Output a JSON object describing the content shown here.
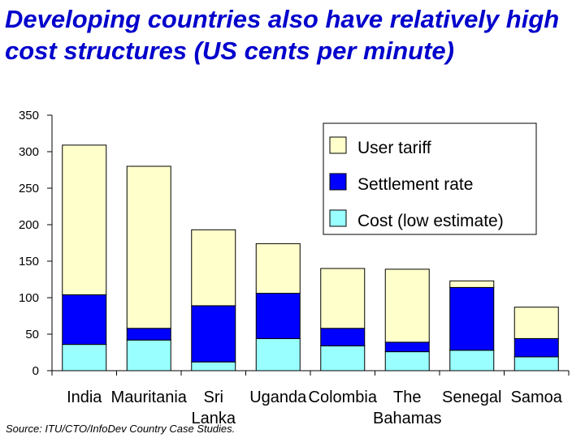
{
  "title": "Developing countries also have relatively high cost structures (US cents per minute)",
  "source": "Source: ITU/CTO/InfoDev Country Case Studies.",
  "colors": {
    "user_tariff": "#ffffcc",
    "settlement_rate": "#0000ff",
    "cost_low_estimate": "#99ffff"
  },
  "chart_data": {
    "type": "bar",
    "stacked": true,
    "ylim": [
      0,
      350
    ],
    "yticks": [
      0,
      50,
      100,
      150,
      200,
      250,
      300,
      350
    ],
    "categories": [
      {
        "line1": "India",
        "line2": ""
      },
      {
        "line1": "Mauritania",
        "line2": ""
      },
      {
        "line1": "Sri",
        "line2": "Lanka"
      },
      {
        "line1": "Uganda",
        "line2": ""
      },
      {
        "line1": "Colombia",
        "line2": ""
      },
      {
        "line1": "The",
        "line2": "Bahamas"
      },
      {
        "line1": "Senegal",
        "line2": ""
      },
      {
        "line1": "Samoa",
        "line2": ""
      }
    ],
    "series": [
      {
        "name": "Cost (low estimate)",
        "key": "cost_low_estimate",
        "values": [
          36,
          42,
          12,
          44,
          34,
          26,
          28,
          19
        ]
      },
      {
        "name": "Settlement rate",
        "key": "settlement_rate",
        "values": [
          68,
          16,
          77,
          62,
          24,
          13,
          86,
          25
        ]
      },
      {
        "name": "User tariff",
        "key": "user_tariff",
        "values": [
          205,
          222,
          104,
          68,
          82,
          100,
          9,
          43
        ]
      }
    ],
    "totals": [
      309,
      280,
      193,
      174,
      140,
      139,
      123,
      87
    ],
    "legend": [
      "User tariff",
      "Settlement rate",
      "Cost (low estimate)"
    ],
    "legend_position": "top-right",
    "xlabel": "",
    "ylabel": ""
  }
}
